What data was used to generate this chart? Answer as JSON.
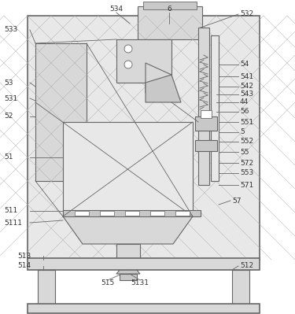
{
  "bg_color": "#ffffff",
  "line_color": "#666666",
  "label_color": "#333333",
  "fill_light": "#e8e8e8",
  "fill_mid": "#d8d8d8",
  "fill_dark": "#c8c8c8"
}
